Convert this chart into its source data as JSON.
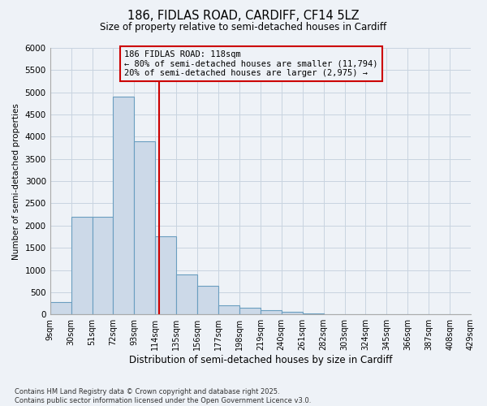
{
  "title1": "186, FIDLAS ROAD, CARDIFF, CF14 5LZ",
  "title2": "Size of property relative to semi-detached houses in Cardiff",
  "xlabel": "Distribution of semi-detached houses by size in Cardiff",
  "ylabel": "Number of semi-detached properties",
  "annotation_line1": "186 FIDLAS ROAD: 118sqm",
  "annotation_line2": "← 80% of semi-detached houses are smaller (11,794)",
  "annotation_line3": "20% of semi-detached houses are larger (2,975) →",
  "property_size": 118,
  "bin_edges": [
    9,
    30,
    51,
    72,
    93,
    114,
    135,
    156,
    177,
    198,
    219,
    240,
    261,
    282,
    303,
    324,
    345,
    366,
    387,
    408,
    429
  ],
  "bar_heights": [
    280,
    2200,
    2200,
    4900,
    3900,
    1750,
    900,
    650,
    200,
    150,
    100,
    50,
    25,
    10,
    5,
    3,
    2,
    1,
    1,
    1
  ],
  "bar_color": "#ccd9e8",
  "bar_edge_color": "#6a9ec0",
  "red_line_color": "#cc0000",
  "annotation_box_color": "#cc0000",
  "grid_color": "#c8d4e0",
  "background_color": "#eef2f7",
  "footer1": "Contains HM Land Registry data © Crown copyright and database right 2025.",
  "footer2": "Contains public sector information licensed under the Open Government Licence v3.0.",
  "ylim": [
    0,
    6000
  ],
  "yticks": [
    0,
    500,
    1000,
    1500,
    2000,
    2500,
    3000,
    3500,
    4000,
    4500,
    5000,
    5500,
    6000
  ]
}
